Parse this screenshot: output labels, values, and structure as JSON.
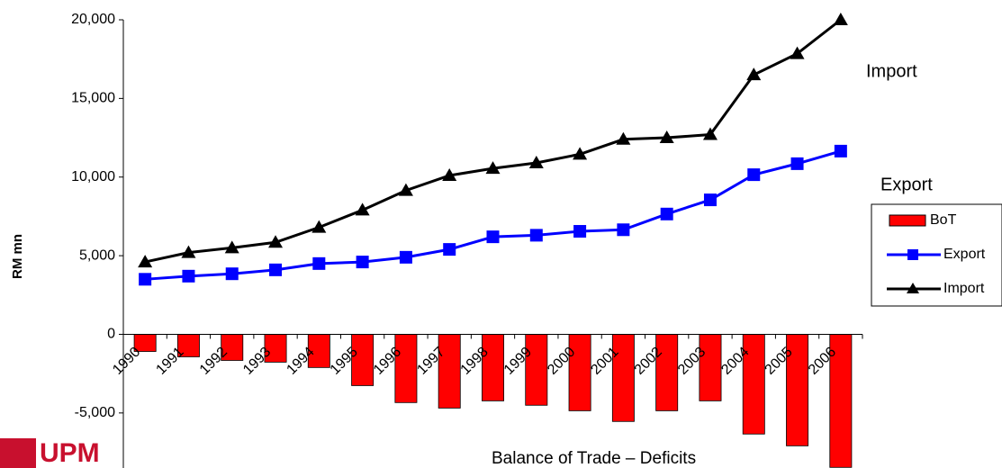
{
  "chart_data": {
    "type": "bar-line",
    "y_label": "RM mn",
    "annotations": [
      "Import",
      "Export",
      "Balance of Trade – Deficits"
    ],
    "logo": "UPM",
    "categories": [
      "1990",
      "1991",
      "1992",
      "1993",
      "1994",
      "1995",
      "1996",
      "1997",
      "1998",
      "1999",
      "2000",
      "2001",
      "2002",
      "2003",
      "2004",
      "2005",
      "2006"
    ],
    "series": [
      {
        "name": "BoT",
        "kind": "bar",
        "color": "#ff0000",
        "values": [
          -1090,
          -1430,
          -1660,
          -1770,
          -2110,
          -3260,
          -4340,
          -4690,
          -4230,
          -4510,
          -4860,
          -5540,
          -4860,
          -4230,
          -6340,
          -7090,
          -8460
        ]
      },
      {
        "name": "Export",
        "kind": "line",
        "marker": "square",
        "color": "#0000ff",
        "values": [
          3500,
          3700,
          3850,
          4100,
          4500,
          4600,
          4900,
          5400,
          6200,
          6300,
          6550,
          6650,
          7650,
          8550,
          10150,
          10850,
          11650
        ]
      },
      {
        "name": "Import",
        "kind": "line",
        "marker": "triangle",
        "color": "#000000",
        "values": [
          4600,
          5200,
          5500,
          5850,
          6800,
          7900,
          9150,
          10100,
          10550,
          10900,
          11450,
          12400,
          12500,
          12700,
          16500,
          17850,
          20000
        ]
      }
    ],
    "ylim": [
      -8500,
      20000
    ],
    "yticks": [
      {
        "value": -5000,
        "label": "-5,000"
      },
      0,
      {
        "value": 5000,
        "label": "5,000"
      },
      {
        "value": 10000,
        "label": "10,000"
      },
      {
        "value": 15000,
        "label": "15,000"
      },
      {
        "value": 20000,
        "label": "20,000"
      }
    ],
    "grid": false
  }
}
